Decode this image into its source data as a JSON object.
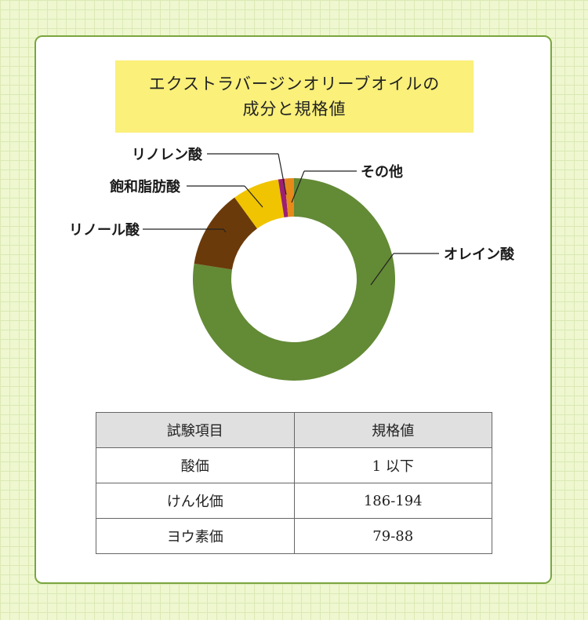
{
  "title": {
    "line1": "エクストラバージンオリーブオイルの",
    "line2": "成分と規格値"
  },
  "colors": {
    "background": "#eef7cf",
    "card_border": "#7aa63f",
    "title_box": "#faf07a",
    "oleic": "#638a35",
    "linoleic": "#6b3a0a",
    "saturated": "#f0c400",
    "linolenic": "#9c1f72",
    "other": "#e68a1a"
  },
  "chart_data": {
    "type": "pie",
    "donut": true,
    "slices": [
      {
        "label": "オレイン酸",
        "value": 77.5,
        "color": "#638a35"
      },
      {
        "label": "リノール酸",
        "value": 12.5,
        "color": "#6b3a0a"
      },
      {
        "label": "飽和脂肪酸",
        "value": 7.5,
        "color": "#f0c400"
      },
      {
        "label": "リノレン酸",
        "value": 1.0,
        "color": "#9c1f72"
      },
      {
        "label": "その他",
        "value": 1.5,
        "color": "#e68a1a"
      }
    ]
  },
  "table": {
    "headers": [
      "試験項目",
      "規格値"
    ],
    "rows": [
      [
        "酸価",
        "1 以下"
      ],
      [
        "けん化価",
        "186-194"
      ],
      [
        "ヨウ素価",
        "79-88"
      ]
    ]
  }
}
